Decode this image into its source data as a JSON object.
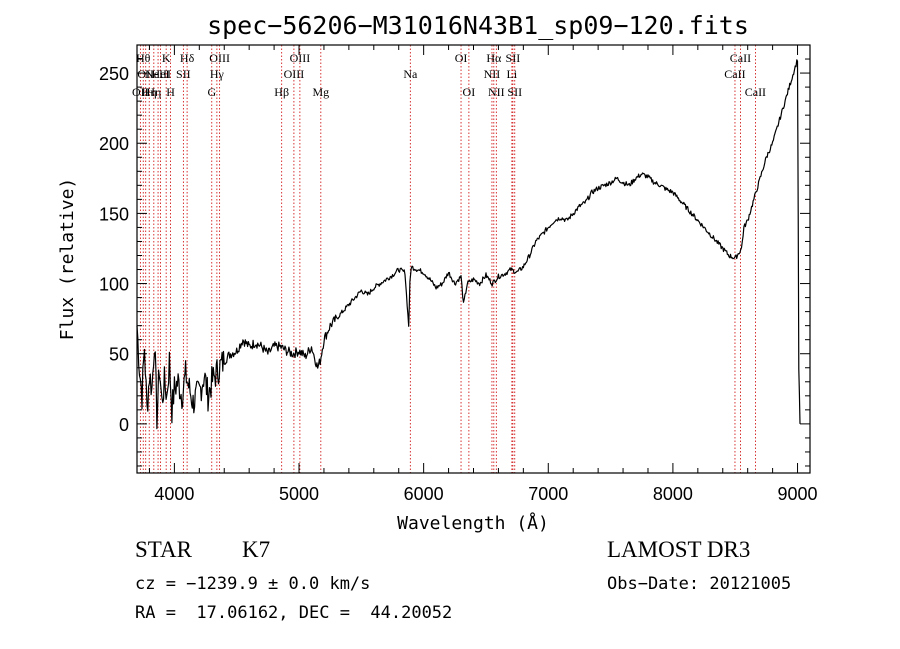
{
  "chart_data": {
    "type": "line",
    "title": "spec−56206−M31016N43B1_sp09−120.fits",
    "xlabel": "Wavelength (Å)",
    "ylabel": "Flux (relative)",
    "xlim": [
      3700,
      9100
    ],
    "ylim": [
      -35,
      270
    ],
    "xticks": [
      4000,
      5000,
      6000,
      7000,
      8000,
      9000
    ],
    "yticks": [
      0,
      50,
      100,
      150,
      200,
      250
    ],
    "line_color": "#cc0000",
    "series": [
      {
        "name": "flux",
        "x": [
          3700,
          3720,
          3740,
          3760,
          3780,
          3800,
          3820,
          3840,
          3860,
          3880,
          3900,
          3920,
          3940,
          3960,
          3980,
          4000,
          4030,
          4060,
          4090,
          4120,
          4150,
          4180,
          4210,
          4240,
          4270,
          4300,
          4330,
          4360,
          4400,
          4450,
          4500,
          4550,
          4600,
          4650,
          4700,
          4750,
          4800,
          4850,
          4900,
          4950,
          5000,
          5050,
          5100,
          5150,
          5170,
          5200,
          5250,
          5300,
          5350,
          5400,
          5450,
          5500,
          5550,
          5600,
          5650,
          5700,
          5750,
          5800,
          5850,
          5880,
          5890,
          5900,
          5950,
          6000,
          6050,
          6100,
          6150,
          6200,
          6250,
          6300,
          6320,
          6350,
          6400,
          6450,
          6500,
          6550,
          6600,
          6650,
          6700,
          6750,
          6800,
          6850,
          6900,
          6950,
          7000,
          7050,
          7100,
          7150,
          7200,
          7250,
          7300,
          7350,
          7400,
          7450,
          7500,
          7550,
          7600,
          7650,
          7700,
          7750,
          7800,
          7850,
          7900,
          7950,
          8000,
          8050,
          8100,
          8150,
          8200,
          8250,
          8300,
          8350,
          8400,
          8450,
          8500,
          8530,
          8550,
          8570,
          8600,
          8650,
          8700,
          8750,
          8800,
          8850,
          8900,
          8950,
          9000,
          9010,
          9020
        ],
        "y": [
          70,
          40,
          20,
          55,
          10,
          35,
          25,
          60,
          5,
          40,
          15,
          30,
          20,
          45,
          10,
          25,
          30,
          20,
          35,
          25,
          15,
          20,
          25,
          35,
          20,
          30,
          35,
          40,
          45,
          50,
          52,
          60,
          55,
          58,
          55,
          50,
          55,
          55,
          52,
          50,
          52,
          48,
          55,
          40,
          45,
          60,
          70,
          75,
          80,
          85,
          90,
          95,
          92,
          97,
          100,
          103,
          106,
          110,
          108,
          70,
          100,
          112,
          110,
          108,
          103,
          97,
          100,
          108,
          100,
          105,
          85,
          100,
          103,
          100,
          106,
          100,
          105,
          107,
          110,
          108,
          112,
          120,
          130,
          135,
          140,
          145,
          147,
          145,
          150,
          155,
          158,
          165,
          168,
          170,
          172,
          175,
          172,
          170,
          175,
          178,
          176,
          172,
          170,
          167,
          165,
          160,
          155,
          150,
          145,
          140,
          135,
          130,
          125,
          120,
          118,
          122,
          125,
          140,
          145,
          160,
          175,
          190,
          200,
          215,
          230,
          245,
          260,
          40,
          0
        ]
      }
    ],
    "lines": [
      {
        "w": 3727,
        "label": "OII",
        "row": 2
      },
      {
        "w": 3750,
        "label": "Hθ",
        "row": 0
      },
      {
        "w": 3770,
        "label": "OII",
        "row": 1
      },
      {
        "w": 3798,
        "label": "Hη",
        "row": 2
      },
      {
        "w": 3835,
        "label": "Hη",
        "row": 2
      },
      {
        "w": 3869,
        "label": "NeIII",
        "row": 1
      },
      {
        "w": 3889,
        "label": "HeI",
        "row": 1
      },
      {
        "w": 3934,
        "label": "K",
        "row": 0
      },
      {
        "w": 3969,
        "label": "H",
        "row": 2
      },
      {
        "w": 4072,
        "label": "SII",
        "row": 1
      },
      {
        "w": 4102,
        "label": "Hδ",
        "row": 0
      },
      {
        "w": 4300,
        "label": "G",
        "row": 2
      },
      {
        "w": 4341,
        "label": "Hγ",
        "row": 1
      },
      {
        "w": 4363,
        "label": "OIII",
        "row": 0
      },
      {
        "w": 4861,
        "label": "Hβ",
        "row": 2
      },
      {
        "w": 4959,
        "label": "OIII",
        "row": 1
      },
      {
        "w": 5007,
        "label": "OIII",
        "row": 0
      },
      {
        "w": 5175,
        "label": "Mg",
        "row": 2
      },
      {
        "w": 5893,
        "label": "Na",
        "row": 1
      },
      {
        "w": 6300,
        "label": "OI",
        "row": 0
      },
      {
        "w": 6363,
        "label": "OI",
        "row": 2
      },
      {
        "w": 6548,
        "label": "NII",
        "row": 1
      },
      {
        "w": 6563,
        "label": "Hα",
        "row": 0
      },
      {
        "w": 6583,
        "label": "NII",
        "row": 2
      },
      {
        "w": 6708,
        "label": "Li",
        "row": 1
      },
      {
        "w": 6716,
        "label": "SII",
        "row": 0
      },
      {
        "w": 6731,
        "label": "SII",
        "row": 2
      },
      {
        "w": 8498,
        "label": "CaII",
        "row": 1
      },
      {
        "w": 8542,
        "label": "CaII",
        "row": 0
      },
      {
        "w": 8662,
        "label": "CaII",
        "row": 2
      }
    ]
  },
  "info": {
    "class": "STAR",
    "subclass": "K7",
    "survey": "LAMOST DR3",
    "cz": "cz = −1239.9 ± 0.0 km/s",
    "obsdate": "Obs−Date: 20121005",
    "radec": "RA =  17.06162, DEC =  44.20052"
  }
}
